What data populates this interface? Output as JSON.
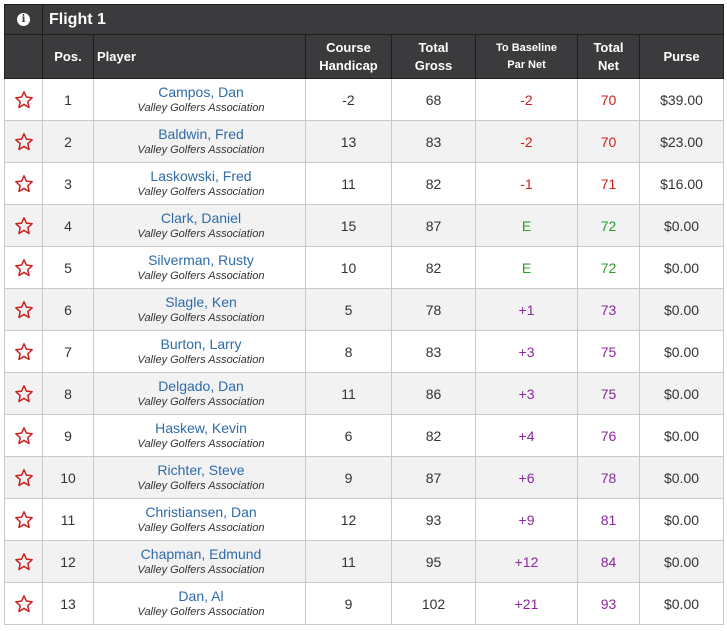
{
  "flight": {
    "title": "Flight 1",
    "info_icon": "info-icon"
  },
  "columns": {
    "pos": "Pos.",
    "player": "Player",
    "handicap": [
      "Course",
      "Handicap"
    ],
    "gross": [
      "Total",
      "Gross"
    ],
    "baseline": [
      "To Baseline",
      "Par Net"
    ],
    "net": [
      "Total",
      "Net"
    ],
    "purse": "Purse"
  },
  "colors": {
    "under": "#cc1f1f",
    "even": "#2e9b2e",
    "over": "#8a2a9c",
    "star": "#cc1f1f",
    "header": "#3b3b3d",
    "link": "#2f6ba8"
  },
  "rows": [
    {
      "pos": "1",
      "name": "Campos, Dan",
      "club": "Valley Golfers Association",
      "handicap": "-2",
      "gross": "68",
      "baseline": "-2",
      "net": "70",
      "purse": "$39.00",
      "tone": "red"
    },
    {
      "pos": "2",
      "name": "Baldwin, Fred",
      "club": "Valley Golfers Association",
      "handicap": "13",
      "gross": "83",
      "baseline": "-2",
      "net": "70",
      "purse": "$23.00",
      "tone": "red"
    },
    {
      "pos": "3",
      "name": "Laskowski, Fred",
      "club": "Valley Golfers Association",
      "handicap": "11",
      "gross": "82",
      "baseline": "-1",
      "net": "71",
      "purse": "$16.00",
      "tone": "red"
    },
    {
      "pos": "4",
      "name": "Clark, Daniel",
      "club": "Valley Golfers Association",
      "handicap": "15",
      "gross": "87",
      "baseline": "E",
      "net": "72",
      "purse": "$0.00",
      "tone": "green"
    },
    {
      "pos": "5",
      "name": "Silverman, Rusty",
      "club": "Valley Golfers Association",
      "handicap": "10",
      "gross": "82",
      "baseline": "E",
      "net": "72",
      "purse": "$0.00",
      "tone": "green"
    },
    {
      "pos": "6",
      "name": "Slagle, Ken",
      "club": "Valley Golfers Association",
      "handicap": "5",
      "gross": "78",
      "baseline": "+1",
      "net": "73",
      "purse": "$0.00",
      "tone": "purple"
    },
    {
      "pos": "7",
      "name": "Burton, Larry",
      "club": "Valley Golfers Association",
      "handicap": "8",
      "gross": "83",
      "baseline": "+3",
      "net": "75",
      "purse": "$0.00",
      "tone": "purple"
    },
    {
      "pos": "8",
      "name": "Delgado, Dan",
      "club": "Valley Golfers Association",
      "handicap": "11",
      "gross": "86",
      "baseline": "+3",
      "net": "75",
      "purse": "$0.00",
      "tone": "purple"
    },
    {
      "pos": "9",
      "name": "Haskew, Kevin",
      "club": "Valley Golfers Association",
      "handicap": "6",
      "gross": "82",
      "baseline": "+4",
      "net": "76",
      "purse": "$0.00",
      "tone": "purple"
    },
    {
      "pos": "10",
      "name": "Richter, Steve",
      "club": "Valley Golfers Association",
      "handicap": "9",
      "gross": "87",
      "baseline": "+6",
      "net": "78",
      "purse": "$0.00",
      "tone": "purple"
    },
    {
      "pos": "11",
      "name": "Christiansen, Dan",
      "club": "Valley Golfers Association",
      "handicap": "12",
      "gross": "93",
      "baseline": "+9",
      "net": "81",
      "purse": "$0.00",
      "tone": "purple"
    },
    {
      "pos": "12",
      "name": "Chapman, Edmund",
      "club": "Valley Golfers Association",
      "handicap": "11",
      "gross": "95",
      "baseline": "+12",
      "net": "84",
      "purse": "$0.00",
      "tone": "purple"
    },
    {
      "pos": "13",
      "name": "Dan, Al",
      "club": "Valley Golfers Association",
      "handicap": "9",
      "gross": "102",
      "baseline": "+21",
      "net": "93",
      "purse": "$0.00",
      "tone": "purple"
    }
  ]
}
